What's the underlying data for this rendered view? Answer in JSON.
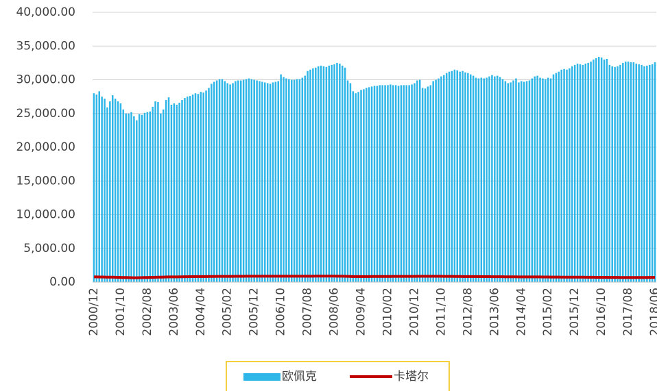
{
  "chart_data": {
    "type": "bar",
    "categories": [
      "2000/12",
      null,
      null,
      null,
      null,
      null,
      null,
      null,
      null,
      null,
      "2001/10",
      null,
      null,
      null,
      null,
      null,
      null,
      null,
      null,
      null,
      "2002/08",
      null,
      null,
      null,
      null,
      null,
      null,
      null,
      null,
      null,
      "2003/06",
      null,
      null,
      null,
      null,
      null,
      null,
      null,
      null,
      null,
      "2004/04",
      null,
      null,
      null,
      null,
      null,
      null,
      null,
      null,
      null,
      "2005/02",
      null,
      null,
      null,
      null,
      null,
      null,
      null,
      null,
      null,
      "2005/12",
      null,
      null,
      null,
      null,
      null,
      null,
      null,
      null,
      null,
      "2006/10",
      null,
      null,
      null,
      null,
      null,
      null,
      null,
      null,
      null,
      "2007/08",
      null,
      null,
      null,
      null,
      null,
      null,
      null,
      null,
      null,
      "2008/06",
      null,
      null,
      null,
      null,
      null,
      null,
      null,
      null,
      null,
      "2009/04",
      null,
      null,
      null,
      null,
      null,
      null,
      null,
      null,
      null,
      "2010/02",
      null,
      null,
      null,
      null,
      null,
      null,
      null,
      null,
      null,
      "2010/12",
      null,
      null,
      null,
      null,
      null,
      null,
      null,
      null,
      null,
      "2011/10",
      null,
      null,
      null,
      null,
      null,
      null,
      null,
      null,
      null,
      "2012/08",
      null,
      null,
      null,
      null,
      null,
      null,
      null,
      null,
      null,
      "2013/06",
      null,
      null,
      null,
      null,
      null,
      null,
      null,
      null,
      null,
      "2014/04",
      null,
      null,
      null,
      null,
      null,
      null,
      null,
      null,
      null,
      "2015/02",
      null,
      null,
      null,
      null,
      null,
      null,
      null,
      null,
      null,
      "2015/12",
      null,
      null,
      null,
      null,
      null,
      null,
      null,
      null,
      null,
      "2016/10",
      null,
      null,
      null,
      null,
      null,
      null,
      null,
      null,
      null,
      "2017/08",
      null,
      null,
      null,
      null,
      null,
      null,
      null,
      null,
      null,
      "2018/06"
    ],
    "series": [
      {
        "name": "欧佩克",
        "type": "bar",
        "color": "#2fb6e8",
        "values": [
          28000,
          27800,
          28300,
          27500,
          27200,
          25900,
          26800,
          27700,
          27200,
          26800,
          26500,
          25600,
          25000,
          25000,
          25200,
          24600,
          24000,
          24900,
          24800,
          25100,
          25200,
          25300,
          26000,
          26800,
          26700,
          25000,
          25600,
          27000,
          27400,
          26300,
          26500,
          26300,
          26600,
          27000,
          27300,
          27500,
          27600,
          27800,
          28000,
          27900,
          28200,
          28100,
          28400,
          28800,
          29400,
          29700,
          29900,
          30100,
          30100,
          29800,
          29500,
          29300,
          29500,
          29800,
          29900,
          29900,
          30000,
          30100,
          30200,
          30100,
          30000,
          29900,
          29800,
          29700,
          29600,
          29500,
          29400,
          29600,
          29700,
          29800,
          30800,
          30400,
          30200,
          30100,
          30000,
          30000,
          30100,
          30100,
          30300,
          30600,
          31300,
          31500,
          31700,
          31800,
          32000,
          32100,
          32000,
          31900,
          32100,
          32200,
          32300,
          32500,
          32400,
          32100,
          31800,
          29900,
          29500,
          28300,
          28000,
          28200,
          28500,
          28600,
          28800,
          28900,
          29000,
          29100,
          29100,
          29200,
          29200,
          29200,
          29200,
          29300,
          29200,
          29200,
          29100,
          29200,
          29200,
          29200,
          29200,
          29300,
          29500,
          29900,
          30000,
          28800,
          28700,
          29000,
          29200,
          29800,
          30000,
          30200,
          30500,
          30700,
          31000,
          31200,
          31300,
          31500,
          31400,
          31200,
          31300,
          31100,
          31000,
          30800,
          30600,
          30300,
          30200,
          30300,
          30200,
          30300,
          30500,
          30700,
          30500,
          30600,
          30400,
          30100,
          29800,
          29500,
          29600,
          29900,
          30200,
          29600,
          29800,
          29700,
          29800,
          29900,
          30200,
          30500,
          30600,
          30300,
          30200,
          30100,
          30300,
          30200,
          30800,
          31000,
          31200,
          31500,
          31600,
          31500,
          31700,
          32000,
          32200,
          32400,
          32300,
          32200,
          32400,
          32500,
          32700,
          33000,
          33200,
          33400,
          33300,
          33000,
          33100,
          32200,
          32000,
          31900,
          32000,
          32200,
          32500,
          32700,
          32700,
          32600,
          32600,
          32400,
          32300,
          32200,
          32000,
          32100,
          32200,
          32300,
          32600
        ]
      },
      {
        "name": "卡塔尔",
        "type": "line",
        "color": "#c00000",
        "values": [
          780,
          770,
          760,
          760,
          750,
          740,
          740,
          730,
          720,
          710,
          700,
          690,
          680,
          670,
          660,
          650,
          650,
          660,
          670,
          680,
          690,
          700,
          710,
          720,
          730,
          740,
          750,
          760,
          770,
          780,
          780,
          780,
          790,
          790,
          800,
          800,
          810,
          810,
          820,
          820,
          820,
          830,
          830,
          840,
          840,
          840,
          850,
          850,
          850,
          850,
          850,
          850,
          850,
          860,
          860,
          860,
          860,
          870,
          870,
          870,
          870,
          870,
          870,
          870,
          870,
          880,
          880,
          880,
          880,
          880,
          880,
          880,
          880,
          880,
          880,
          880,
          880,
          880,
          880,
          880,
          880,
          880,
          880,
          890,
          890,
          890,
          890,
          890,
          890,
          890,
          890,
          880,
          880,
          870,
          860,
          850,
          840,
          830,
          830,
          830,
          830,
          830,
          830,
          830,
          840,
          840,
          840,
          840,
          840,
          840,
          840,
          840,
          850,
          850,
          850,
          850,
          850,
          850,
          850,
          850,
          850,
          860,
          860,
          860,
          860,
          860,
          860,
          860,
          860,
          860,
          860,
          850,
          850,
          850,
          850,
          840,
          840,
          840,
          830,
          830,
          830,
          830,
          820,
          820,
          820,
          810,
          810,
          810,
          810,
          800,
          800,
          800,
          800,
          800,
          790,
          790,
          790,
          790,
          790,
          780,
          780,
          780,
          780,
          780,
          780,
          770,
          770,
          770,
          760,
          760,
          760,
          750,
          750,
          750,
          750,
          740,
          740,
          740,
          740,
          730,
          730,
          730,
          730,
          730,
          720,
          720,
          720,
          720,
          710,
          710,
          710,
          710,
          710,
          700,
          700,
          700,
          700,
          690,
          690,
          690,
          690,
          690,
          690,
          690,
          690,
          690,
          690,
          690,
          700,
          700,
          700
        ]
      }
    ],
    "ylim": [
      0,
      40000
    ],
    "yticks": [
      {
        "value": 0,
        "label": "0.00"
      },
      {
        "value": 5000,
        "label": "5,000.00"
      },
      {
        "value": 10000,
        "label": "10,000.00"
      },
      {
        "value": 15000,
        "label": "15,000.00"
      },
      {
        "value": 20000,
        "label": "20,000.00"
      },
      {
        "value": 25000,
        "label": "25,000.00"
      },
      {
        "value": 30000,
        "label": "30,000.00"
      },
      {
        "value": 35000,
        "label": "35,000.00"
      },
      {
        "value": 40000,
        "label": "40,000.00"
      }
    ],
    "grid": true,
    "legend": "bottom"
  }
}
